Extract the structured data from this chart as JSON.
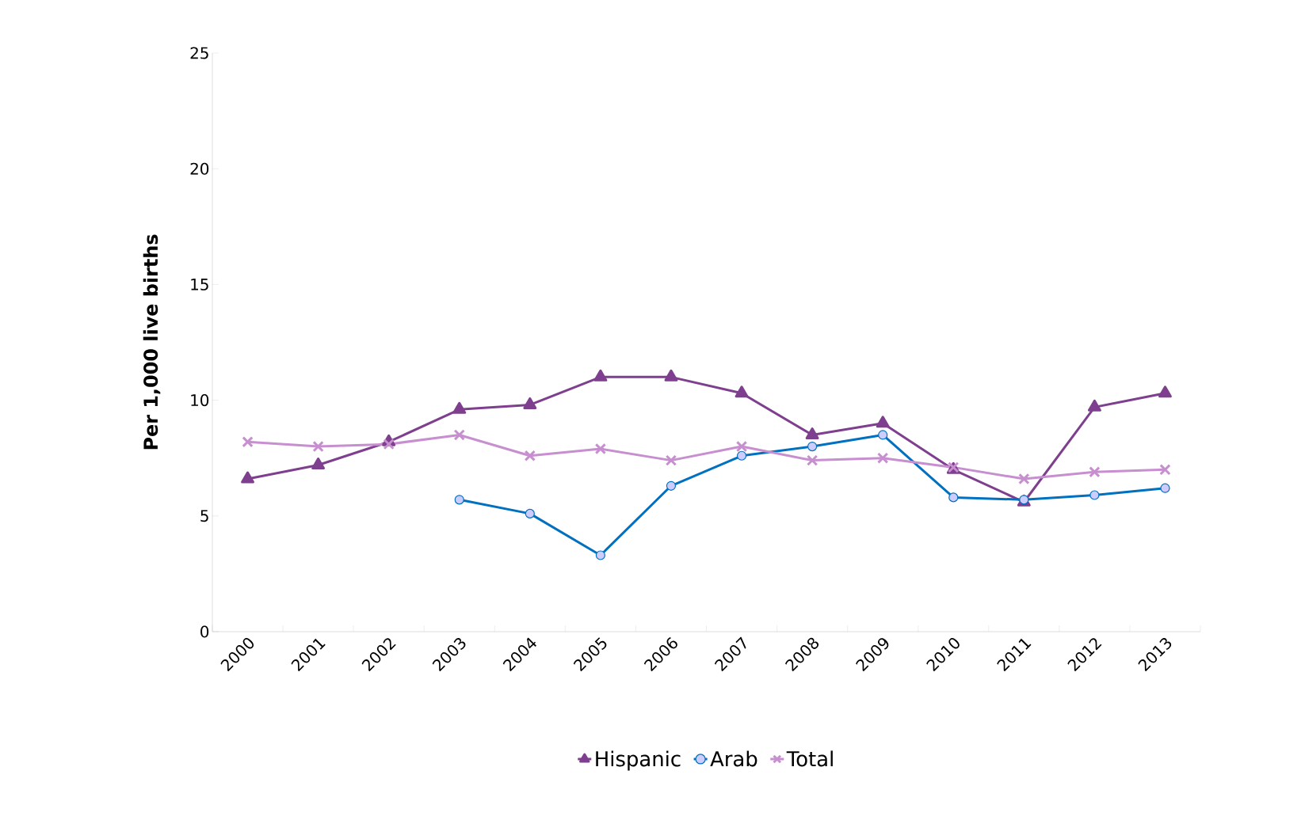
{
  "chart_data": {
    "type": "line",
    "ylabel": "Per 1,000 live births",
    "categories": [
      "2000",
      "2001",
      "2002",
      "2003",
      "2004",
      "2005",
      "2006",
      "2007",
      "2008",
      "2009",
      "2010",
      "2011",
      "2012",
      "2013"
    ],
    "series": [
      {
        "name": "Hispanic",
        "color": "#7f3f8f",
        "marker": "triangle",
        "values": [
          6.6,
          7.2,
          8.2,
          9.6,
          9.8,
          11.0,
          11.0,
          10.3,
          8.5,
          9.0,
          7.0,
          5.6,
          9.7,
          10.3
        ]
      },
      {
        "name": "Arab",
        "color": "#0070c0",
        "marker": "circle",
        "values": [
          null,
          null,
          null,
          5.7,
          5.1,
          3.3,
          6.3,
          7.6,
          8.0,
          8.5,
          5.8,
          5.7,
          5.9,
          6.2
        ]
      },
      {
        "name": "Total",
        "color": "#c78fcf",
        "marker": "cross",
        "values": [
          8.2,
          8.0,
          8.1,
          8.5,
          7.6,
          7.9,
          7.4,
          8.0,
          7.4,
          7.5,
          7.1,
          6.6,
          6.9,
          7.0
        ]
      }
    ],
    "ylim": [
      0,
      25
    ],
    "yticks": [
      0,
      5,
      10,
      15,
      20,
      25
    ],
    "grid": false,
    "legend": "bottom",
    "line_style": "solid"
  }
}
